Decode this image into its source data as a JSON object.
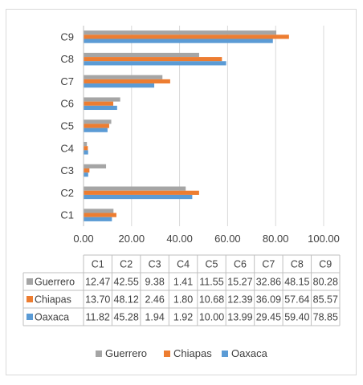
{
  "chart_data": {
    "type": "bar",
    "orientation": "horizontal",
    "categories": [
      "C1",
      "C2",
      "C3",
      "C4",
      "C5",
      "C6",
      "C7",
      "C8",
      "C9"
    ],
    "series": [
      {
        "name": "Guerrero",
        "color": "#a5a5a5",
        "values": [
          12.47,
          42.55,
          9.38,
          1.41,
          11.55,
          15.27,
          32.86,
          48.15,
          80.28
        ]
      },
      {
        "name": "Chiapas",
        "color": "#ed7d31",
        "values": [
          13.7,
          48.12,
          2.46,
          1.8,
          10.68,
          12.39,
          36.09,
          57.64,
          85.57
        ]
      },
      {
        "name": "Oaxaca",
        "color": "#5b9bd5",
        "values": [
          11.82,
          45.28,
          1.94,
          1.92,
          10.0,
          13.99,
          29.45,
          59.4,
          78.85
        ]
      }
    ],
    "xlim": [
      0,
      100
    ],
    "x_ticks": [
      "0.00",
      "20.00",
      "40.00",
      "60.00",
      "80.00",
      "100.00"
    ],
    "grid": true,
    "legend_position": "bottom",
    "data_table": {
      "headers": [
        "C1",
        "C2",
        "C3",
        "C4",
        "C5",
        "C6",
        "C7",
        "C8",
        "C9"
      ],
      "rows": [
        {
          "name": "Guerrero",
          "cells": [
            "12.47",
            "42.55",
            "9.38",
            "1.41",
            "11.55",
            "15.27",
            "32.86",
            "48.15",
            "80.28"
          ]
        },
        {
          "name": "Chiapas",
          "cells": [
            "13.70",
            "48.12",
            "2.46",
            "1.80",
            "10.68",
            "12.39",
            "36.09",
            "57.64",
            "85.57"
          ]
        },
        {
          "name": "Oaxaca",
          "cells": [
            "11.82",
            "45.28",
            "1.94",
            "1.92",
            "10.00",
            "13.99",
            "29.45",
            "59.40",
            "78.85"
          ]
        }
      ]
    },
    "legend": [
      "Guerrero",
      "Chiapas",
      "Oaxaca"
    ]
  }
}
